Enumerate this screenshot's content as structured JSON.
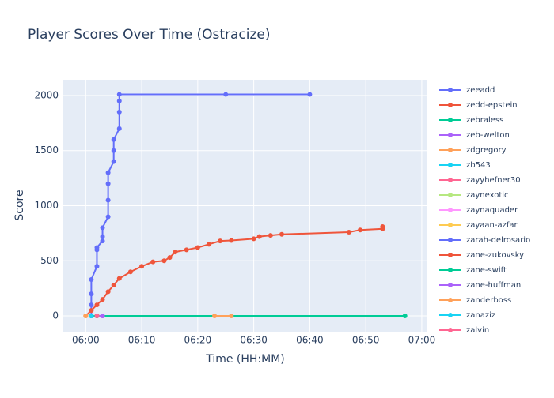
{
  "chart_data": {
    "type": "line",
    "title": "Player Scores Over Time (Ostracize)",
    "x_label": "Time (HH:MM)",
    "y_label": "Score",
    "xlim": [
      "05:56",
      "07:01"
    ],
    "ylim": [
      -143,
      2143
    ],
    "xticks": [
      "06:00",
      "06:10",
      "06:20",
      "06:30",
      "06:40",
      "06:50",
      "07:00"
    ],
    "yticks": [
      0,
      500,
      1000,
      1500,
      2000
    ],
    "grid": true,
    "series": [
      {
        "name": "zeeadd",
        "color": "#636efa",
        "x": [
          "06:01",
          "06:01",
          "06:01",
          "06:01",
          "06:02",
          "06:02",
          "06:02",
          "06:03",
          "06:03",
          "06:03",
          "06:04",
          "06:04",
          "06:04",
          "06:04",
          "06:05",
          "06:05",
          "06:05",
          "06:06",
          "06:06",
          "06:06",
          "06:06",
          "06:25",
          "06:40"
        ],
        "values": [
          0,
          100,
          200,
          330,
          450,
          600,
          620,
          680,
          720,
          800,
          900,
          1050,
          1200,
          1300,
          1400,
          1500,
          1600,
          1700,
          1850,
          1950,
          2010,
          2010,
          2010
        ]
      },
      {
        "name": "zedd-epstein",
        "color": "#EF553B",
        "x": [
          "06:00",
          "06:01",
          "06:02",
          "06:03",
          "06:04",
          "06:05",
          "06:06",
          "06:08",
          "06:10",
          "06:12",
          "06:14",
          "06:15",
          "06:16",
          "06:18",
          "06:20",
          "06:22",
          "06:24",
          "06:26",
          "06:30",
          "06:31",
          "06:33",
          "06:35",
          "06:47",
          "06:49",
          "06:53",
          "06:53"
        ],
        "values": [
          0,
          50,
          100,
          150,
          220,
          280,
          340,
          400,
          450,
          490,
          500,
          530,
          580,
          600,
          620,
          650,
          680,
          685,
          700,
          720,
          730,
          740,
          760,
          780,
          790,
          810
        ]
      },
      {
        "name": "zebraless",
        "color": "#00cc96",
        "x": [
          "06:01",
          "06:57"
        ],
        "values": [
          0,
          0
        ]
      },
      {
        "name": "zeb-welton",
        "color": "#ab63fa",
        "x": [
          "06:02",
          "06:03"
        ],
        "values": [
          0,
          0
        ]
      },
      {
        "name": "zdgregory",
        "color": "#FFA15A",
        "x": [
          "06:23",
          "06:26"
        ],
        "values": [
          0,
          0
        ]
      },
      {
        "name": "zb543",
        "color": "#19d3f3",
        "x": [
          "06:01"
        ],
        "values": [
          0
        ]
      },
      {
        "name": "zayyhefner30",
        "color": "#FF6692",
        "x": [
          "06:02"
        ],
        "values": [
          0
        ]
      },
      {
        "name": "zaynexotic",
        "color": "#B6E880",
        "x": [
          "06:01"
        ],
        "values": [
          0
        ]
      },
      {
        "name": "zaynaquader",
        "color": "#FF97FF",
        "x": [
          "06:02"
        ],
        "values": [
          0
        ]
      },
      {
        "name": "zayaan-azfar",
        "color": "#FECB52",
        "x": [
          "06:00"
        ],
        "values": [
          0
        ]
      },
      {
        "name": "zarah-delrosario",
        "color": "#636efa",
        "x": [
          "06:01"
        ],
        "values": [
          0
        ]
      },
      {
        "name": "zane-zukovsky",
        "color": "#EF553B",
        "x": [
          "06:02"
        ],
        "values": [
          0
        ]
      },
      {
        "name": "zane-swift",
        "color": "#00cc96",
        "x": [
          "06:02"
        ],
        "values": [
          0
        ]
      },
      {
        "name": "zane-huffman",
        "color": "#ab63fa",
        "x": [
          "06:03"
        ],
        "values": [
          0
        ]
      },
      {
        "name": "zanderboss",
        "color": "#FFA15A",
        "x": [
          "06:00"
        ],
        "values": [
          0
        ]
      },
      {
        "name": "zanaziz",
        "color": "#19d3f3",
        "x": [
          "06:01"
        ],
        "values": [
          0
        ]
      },
      {
        "name": "zalvin",
        "color": "#FF6692",
        "x": [
          "06:02"
        ],
        "values": [
          0
        ]
      }
    ]
  }
}
